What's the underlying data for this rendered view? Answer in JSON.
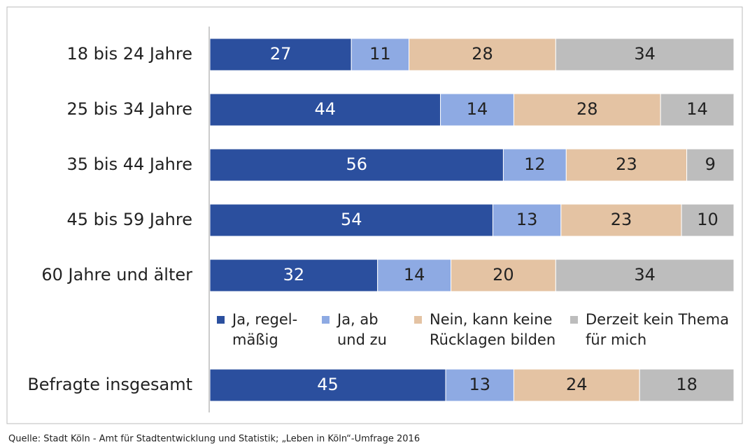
{
  "chart_data": {
    "type": "stacked-bar-horizontal",
    "categories": [
      "18 bis 24 Jahre",
      "25 bis 34 Jahre",
      "35 bis 44 Jahre",
      "45 bis 59 Jahre",
      "60 Jahre und älter",
      "Befragte insgesamt"
    ],
    "series": [
      {
        "name": "Ja, regel-\nmäßig",
        "color": "#2b4f9e",
        "values": [
          27,
          44,
          56,
          54,
          32,
          45
        ]
      },
      {
        "name": "Ja, ab\nund zu",
        "color": "#8eaae3",
        "values": [
          11,
          14,
          12,
          13,
          14,
          13
        ]
      },
      {
        "name": "Nein, kann keine\nRücklagen bilden",
        "color": "#e4c3a3",
        "values": [
          28,
          28,
          23,
          23,
          20,
          24
        ]
      },
      {
        "name": "Derzeit kein Thema\nfür mich",
        "color": "#bdbdbd",
        "values": [
          34,
          14,
          9,
          10,
          34,
          18
        ]
      }
    ],
    "xlim": [
      0,
      100
    ],
    "source": "Quelle: Stadt Köln - Amt für Stadtentwicklung und Statistik; „Leben in Köln“-Umfrage 2016"
  }
}
